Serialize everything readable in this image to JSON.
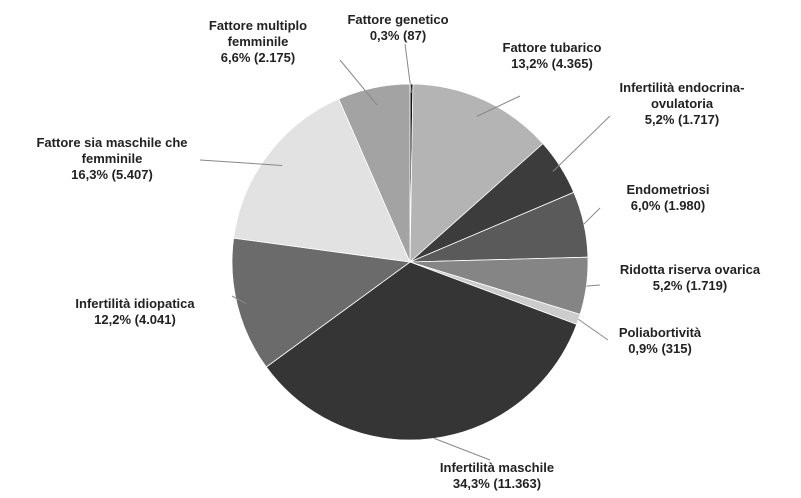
{
  "chart_data": {
    "type": "pie",
    "categories": [
      "Fattore genetico",
      "Fattore tubarico",
      "Infertilità endocrina-ovulatoria",
      "Endometriosi",
      "Ridotta riserva ovarica",
      "Poliabortività",
      "Infertilità maschile",
      "Infertilità idiopatica",
      "Fattore sia maschile che femminile",
      "Fattore multiplo femminile"
    ],
    "values": [
      87,
      4365,
      1717,
      1980,
      1719,
      315,
      11363,
      4041,
      5407,
      2175
    ],
    "value_labels": [
      "0,3% (87)",
      "13,2% (4.365)",
      "5,2% (1.717)",
      "6,0% (1.980)",
      "5,2% (1.719)",
      "0,9% (315)",
      "34,3% (11.363)",
      "12,2% (4.041)",
      "16,3% (5.407)",
      "6,6% (2.175)"
    ],
    "colors": [
      "#111111",
      "#b4b4b4",
      "#3c3c3c",
      "#5a5a5a",
      "#858585",
      "#cccccc",
      "#353535",
      "#6b6b6b",
      "#e2e2e2",
      "#a3a3a3"
    ]
  }
}
